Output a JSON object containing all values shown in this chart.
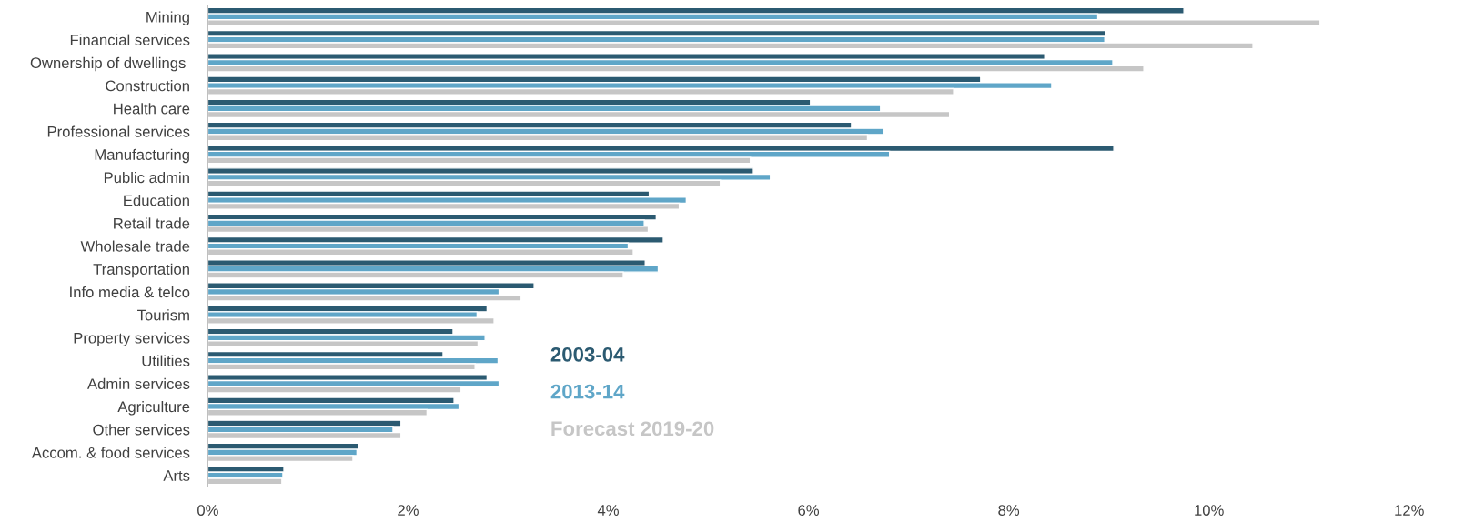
{
  "chart_data": {
    "type": "bar",
    "orientation": "horizontal",
    "categories": [
      "Mining",
      "Financial services",
      "Ownership of dwellings ",
      "Construction",
      "Health care",
      "Professional services",
      "Manufacturing",
      "Public admin",
      "Education",
      "Retail trade",
      "Wholesale trade",
      "Transportation",
      "Info media & telco",
      "Tourism",
      "Property services",
      "Utilities",
      "Admin services",
      "Agriculture",
      "Other services",
      "Accom. & food services",
      "Arts"
    ],
    "series": [
      {
        "name": "2003-04",
        "color": "#2b5a71",
        "values": [
          9.75,
          8.97,
          8.36,
          7.72,
          6.02,
          6.43,
          9.05,
          5.45,
          4.41,
          4.48,
          4.55,
          4.37,
          3.26,
          2.79,
          2.45,
          2.35,
          2.79,
          2.46,
          1.93,
          1.51,
          0.76
        ]
      },
      {
        "name": "2013-14",
        "color": "#5fa6c8",
        "values": [
          8.89,
          8.96,
          9.04,
          8.43,
          6.72,
          6.75,
          6.81,
          5.62,
          4.78,
          4.36,
          4.2,
          4.5,
          2.91,
          2.69,
          2.77,
          2.9,
          2.91,
          2.51,
          1.85,
          1.49,
          0.75
        ]
      },
      {
        "name": "Forecast 2019-20",
        "color": "#c6c6c6",
        "values": [
          11.11,
          10.44,
          9.35,
          7.45,
          7.41,
          6.59,
          5.42,
          5.12,
          4.71,
          4.4,
          4.25,
          4.15,
          3.13,
          2.86,
          2.7,
          2.67,
          2.53,
          2.19,
          1.93,
          1.45,
          0.74
        ]
      }
    ],
    "xlim": [
      0,
      12
    ],
    "xticks": [
      {
        "value": 0,
        "label": "0%"
      },
      {
        "value": 2,
        "label": "2%"
      },
      {
        "value": 4,
        "label": "4%"
      },
      {
        "value": 6,
        "label": "6%"
      },
      {
        "value": 8,
        "label": "8%"
      },
      {
        "value": 10,
        "label": "10%"
      },
      {
        "value": 12,
        "label": "12%"
      }
    ],
    "grid": false,
    "legend": "bottom"
  }
}
